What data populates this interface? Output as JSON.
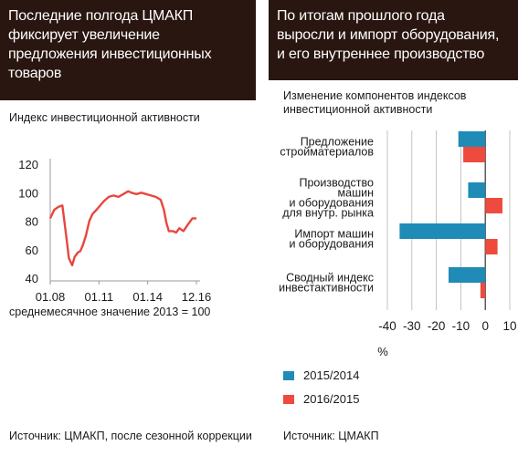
{
  "left": {
    "headline_lines": [
      "Последние полгода ЦМАКП",
      "фиксирует увеличение",
      "предложения инвестиционных",
      "товаров"
    ],
    "subtitle": "Индекс инвестиционной активности",
    "note": "среднемесячное значение 2013 = 100",
    "source": "Источник: ЦМАКП, после сезонной коррекции"
  },
  "right": {
    "headline_lines": [
      "По итогам прошлого года",
      "выросли и импорт оборудования,",
      "и его внутреннее производство"
    ],
    "subtitle_lines": [
      "Изменение компонентов индексов",
      "инвестиционной активности"
    ],
    "source": "Источник: ЦМАКП"
  },
  "colors": {
    "header_bg": "#2a1610",
    "line": "#e8473d",
    "blue": "#1f8bb6",
    "red": "#ee4a3e"
  },
  "chart_data": [
    {
      "type": "line",
      "title": "Индекс инвестиционной активности",
      "ylim": [
        40,
        120
      ],
      "yticks": [
        120,
        100,
        80,
        60,
        40
      ],
      "xlim": [
        2008.0,
        2017.0
      ],
      "xtick_values": [
        2008.0,
        2011.0,
        2014.0,
        2017.0
      ],
      "xtick_labels": [
        "01.08",
        "01.11",
        "01.14",
        "12.16"
      ],
      "grid": false,
      "x": [
        2008.0,
        2008.25,
        2008.5,
        2008.75,
        2009.0,
        2009.15,
        2009.35,
        2009.5,
        2009.7,
        2009.85,
        2010.0,
        2010.2,
        2010.4,
        2010.6,
        2010.85,
        2011.0,
        2011.3,
        2011.6,
        2011.9,
        2012.2,
        2012.5,
        2012.8,
        2013.0,
        2013.3,
        2013.6,
        2013.9,
        2014.2,
        2014.5,
        2014.8,
        2015.0,
        2015.15,
        2015.3,
        2015.55,
        2015.75,
        2015.95,
        2016.2,
        2016.5,
        2016.75,
        2017.0
      ],
      "y": [
        82,
        88,
        90,
        91,
        68,
        54,
        49,
        55,
        58,
        59,
        63,
        70,
        80,
        85,
        88,
        90,
        94,
        97,
        98,
        97,
        99,
        101,
        100,
        99,
        100,
        99,
        98,
        97,
        95,
        88,
        79,
        73,
        73,
        72,
        75,
        73,
        78,
        82,
        82
      ]
    },
    {
      "type": "bar",
      "orientation": "horizontal",
      "categories": [
        [
          "Предложение",
          "стройматериалов"
        ],
        [
          "Производство",
          "машин",
          "и оборудования",
          "для внутр. рынка"
        ],
        [
          "Импорт машин",
          "и оборудования"
        ],
        [
          "Сводный индекс",
          "инвестактивности"
        ]
      ],
      "series": [
        {
          "name": "2015/2014",
          "color": "#1f8bb6",
          "values": [
            -11,
            -7,
            -35,
            -15
          ]
        },
        {
          "name": "2016/2015",
          "color": "#ee4a3e",
          "values": [
            -9,
            7,
            5,
            -2
          ]
        }
      ],
      "xlim": [
        -40,
        10
      ],
      "xticks": [
        "-40",
        "-30",
        "-20",
        "-10",
        "0",
        "10"
      ],
      "xlabel": "%",
      "grid": true
    }
  ]
}
